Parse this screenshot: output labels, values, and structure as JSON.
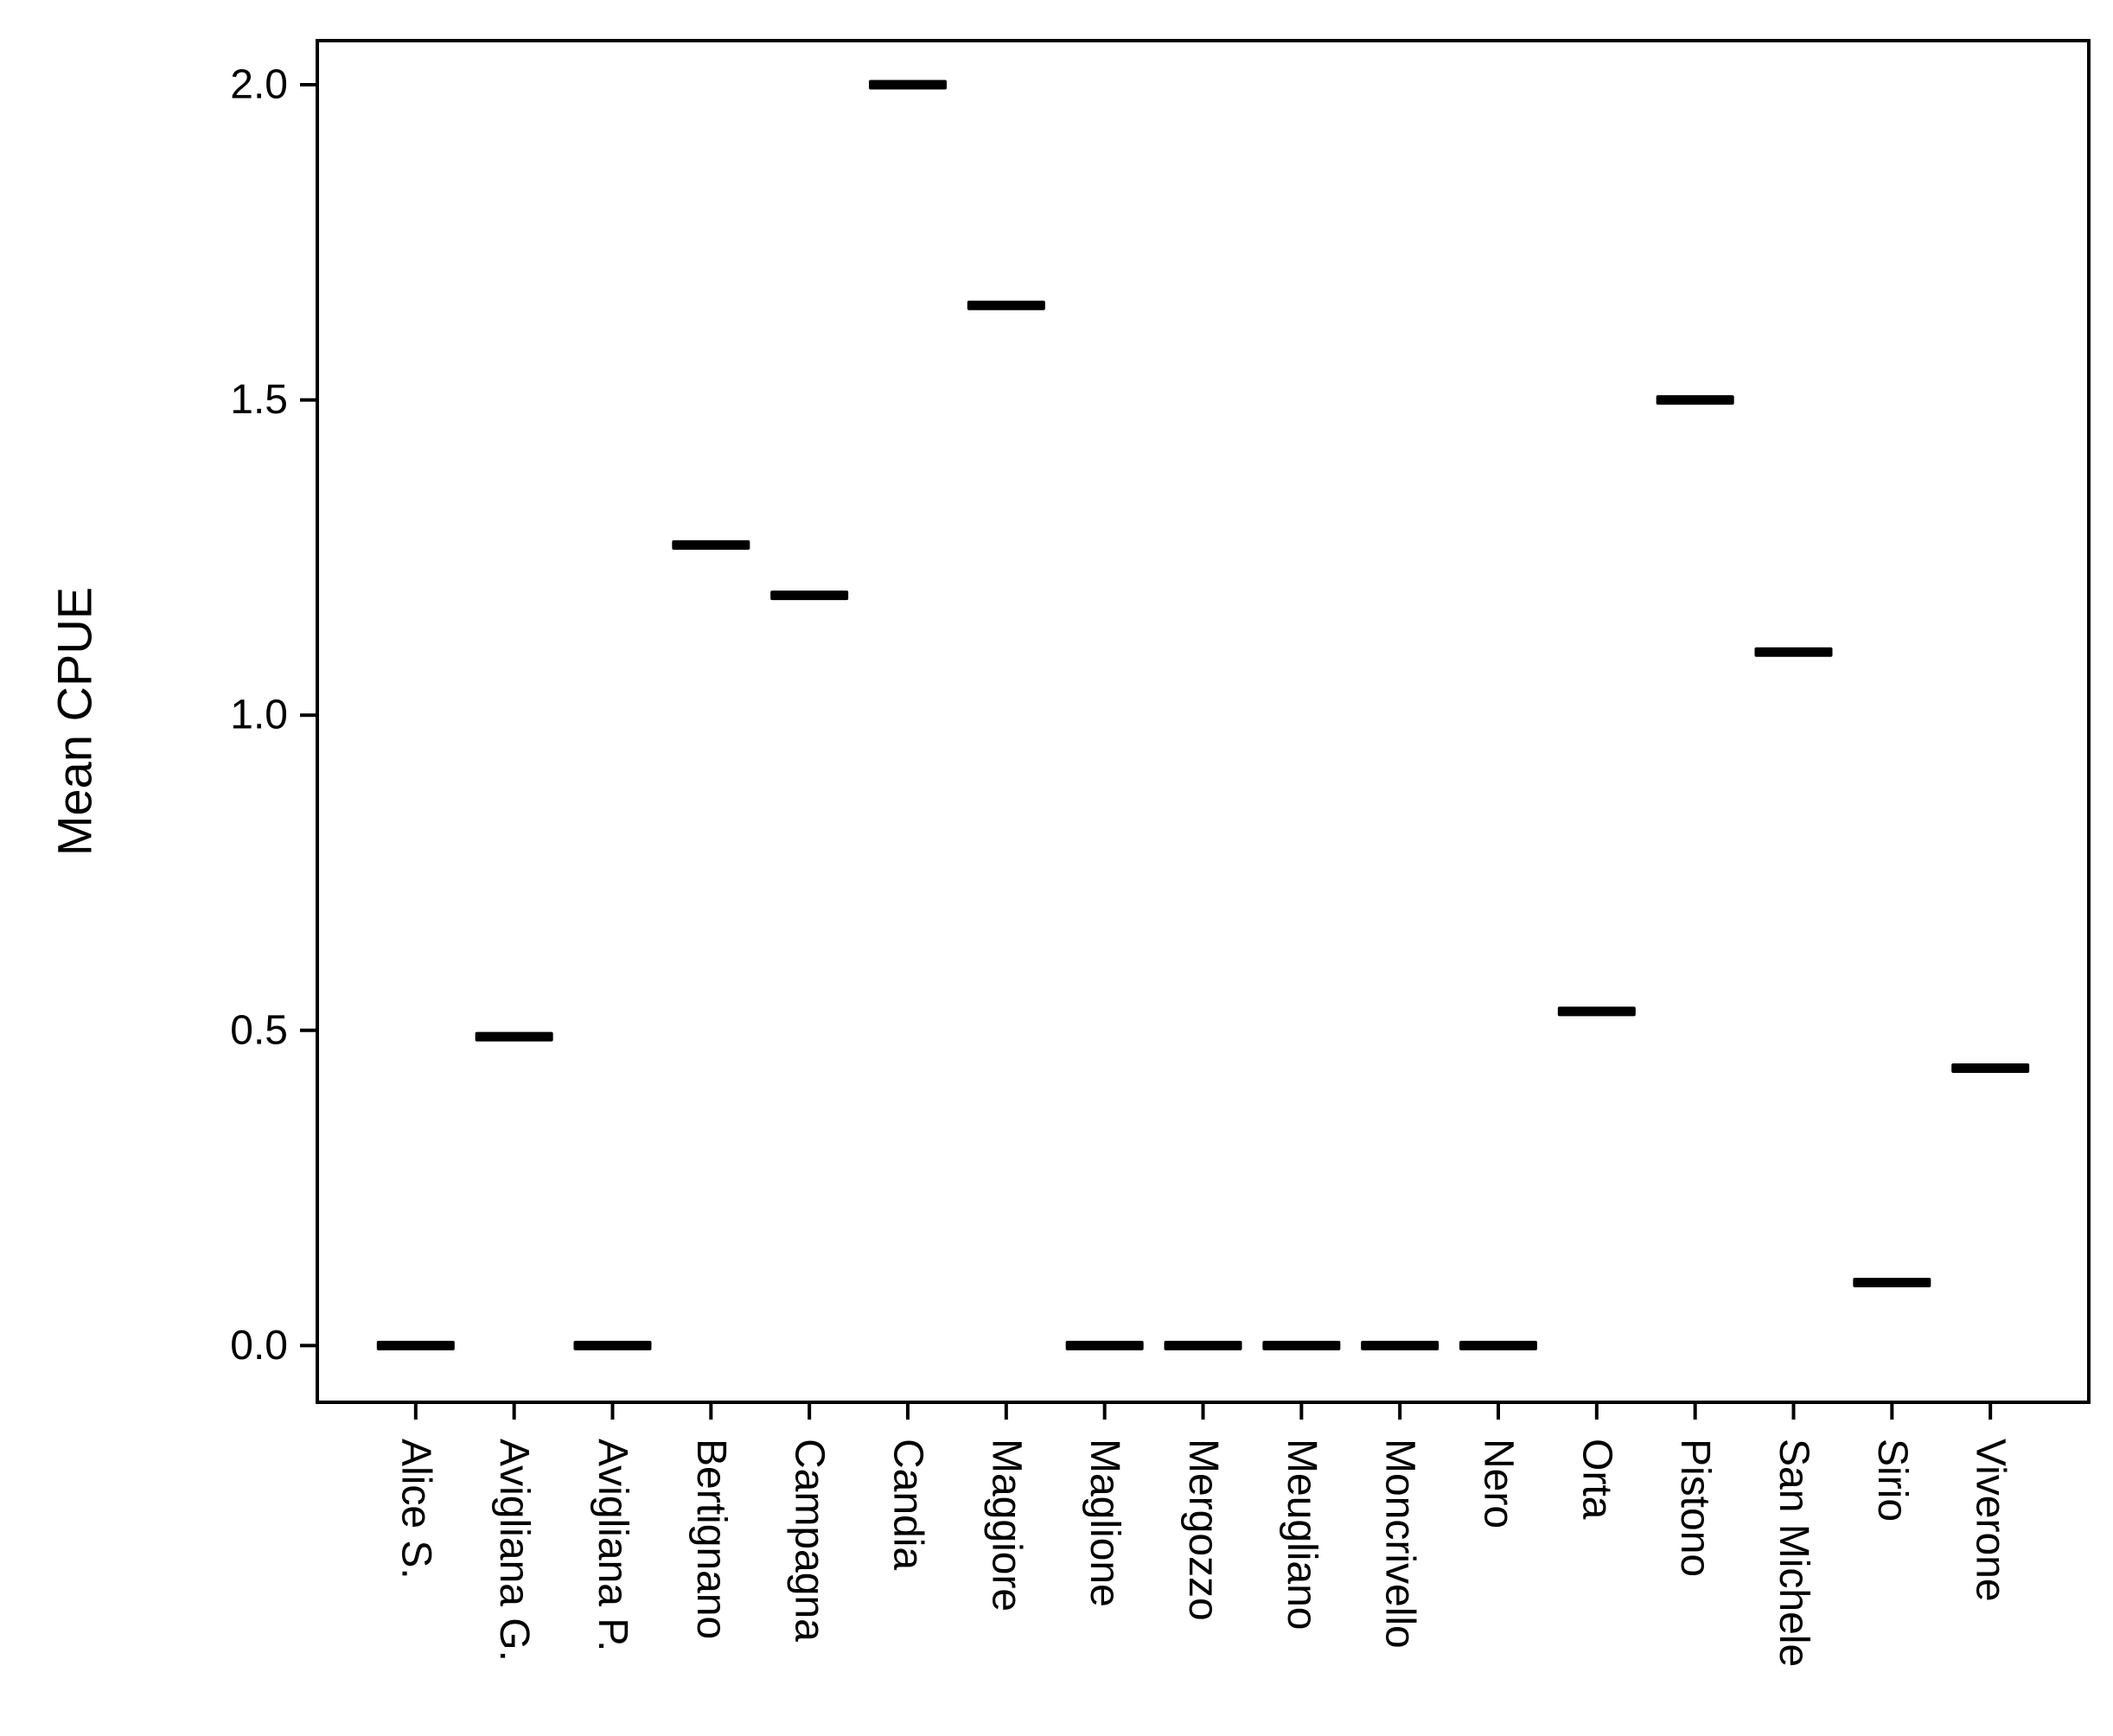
{
  "figure": {
    "background": "#ffffff",
    "axis_color": "#000000",
    "mark_color": "#000000"
  },
  "chart_data": {
    "type": "scatter",
    "marker": "horizontal-dash",
    "title": "",
    "xlabel": "",
    "ylabel": "Mean CPUE",
    "categories": [
      "Alice S.",
      "Avigliana G.",
      "Avigliana P.",
      "Bertignano",
      "Campagna",
      "Candia",
      "Maggiore",
      "Maglione",
      "Mergozzo",
      "Meugliano",
      "Moncrivello",
      "Nero",
      "Orta",
      "Pistono",
      "San Michele",
      "Sirio",
      "Viverone"
    ],
    "values": [
      0.0,
      0.49,
      0.0,
      1.27,
      1.19,
      2.0,
      1.65,
      0.0,
      0.0,
      0.0,
      0.0,
      0.0,
      0.53,
      1.5,
      1.1,
      0.1,
      0.44
    ],
    "yticks": [
      0.0,
      0.5,
      1.0,
      1.5,
      2.0
    ],
    "ytick_labels": [
      "0.0",
      "0.5",
      "1.0",
      "1.5",
      "2.0"
    ],
    "ylim": [
      -0.09,
      2.07
    ],
    "grid": false,
    "legend": false
  }
}
